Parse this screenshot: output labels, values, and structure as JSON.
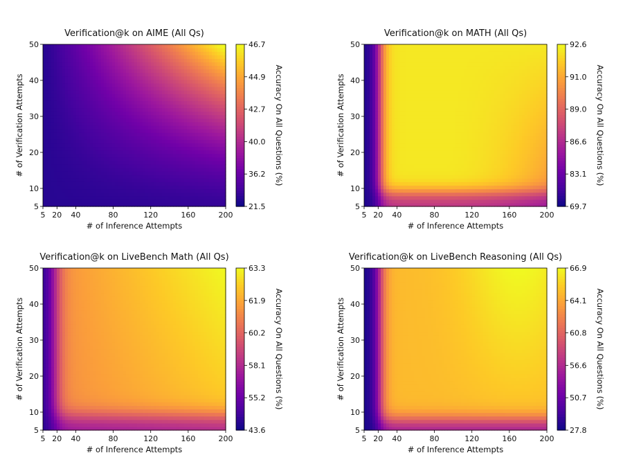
{
  "colormap": [
    "#0d0887",
    "#46039f",
    "#7201a8",
    "#9c179e",
    "#bd3786",
    "#d8576b",
    "#ed7953",
    "#fb9f3a",
    "#fdca26",
    "#f0f921"
  ],
  "chart_data": [
    {
      "type": "heatmap",
      "title": "Verification@k on AIME (All Qs)",
      "xlabel": "# of Inference Attempts",
      "ylabel": "# of Verification Attempts",
      "xlim": [
        5,
        200
      ],
      "ylim": [
        5,
        50
      ],
      "xticks": [
        5,
        20,
        40,
        80,
        120,
        160,
        200
      ],
      "yticks": [
        5,
        10,
        20,
        30,
        40,
        50
      ],
      "colorbar_label": "Accuracy On All Questions (%)",
      "colorbar_ticks": [
        "46.7",
        "44.9",
        "42.7",
        "40.0",
        "36.2",
        "21.5"
      ],
      "value_range": [
        21.5,
        46.7
      ],
      "model": "aime"
    },
    {
      "type": "heatmap",
      "title": "Verification@k on MATH (All Qs)",
      "xlabel": "# of Inference Attempts",
      "ylabel": "# of Verification Attempts",
      "xlim": [
        5,
        200
      ],
      "ylim": [
        5,
        50
      ],
      "xticks": [
        5,
        20,
        40,
        80,
        120,
        160,
        200
      ],
      "yticks": [
        5,
        10,
        20,
        30,
        40,
        50
      ],
      "colorbar_label": "Accuracy On All Questions (%)",
      "colorbar_ticks": [
        "92.6",
        "91.0",
        "89.0",
        "86.6",
        "83.1",
        "69.7"
      ],
      "value_range": [
        69.7,
        92.6
      ],
      "model": "math"
    },
    {
      "type": "heatmap",
      "title": "Verification@k on LiveBench Math (All Qs)",
      "xlabel": "# of Inference Attempts",
      "ylabel": "# of Verification Attempts",
      "xlim": [
        5,
        200
      ],
      "ylim": [
        5,
        50
      ],
      "xticks": [
        5,
        20,
        40,
        80,
        120,
        160,
        200
      ],
      "yticks": [
        5,
        10,
        20,
        30,
        40,
        50
      ],
      "colorbar_label": "Accuracy On All Questions (%)",
      "colorbar_ticks": [
        "63.3",
        "61.9",
        "60.2",
        "58.1",
        "55.2",
        "43.6"
      ],
      "value_range": [
        43.6,
        63.3
      ],
      "model": "lbmath"
    },
    {
      "type": "heatmap",
      "title": "Verification@k on LiveBench Reasoning (All Qs)",
      "xlabel": "# of Inference Attempts",
      "ylabel": "# of Verification Attempts",
      "xlim": [
        5,
        200
      ],
      "ylim": [
        5,
        50
      ],
      "xticks": [
        5,
        20,
        40,
        80,
        120,
        160,
        200
      ],
      "yticks": [
        5,
        10,
        20,
        30,
        40,
        50
      ],
      "colorbar_label": "Accuracy On All Questions (%)",
      "colorbar_ticks": [
        "66.9",
        "64.1",
        "60.8",
        "56.6",
        "50.7",
        "27.8"
      ],
      "value_range": [
        27.8,
        66.9
      ],
      "model": "lbreason"
    }
  ]
}
